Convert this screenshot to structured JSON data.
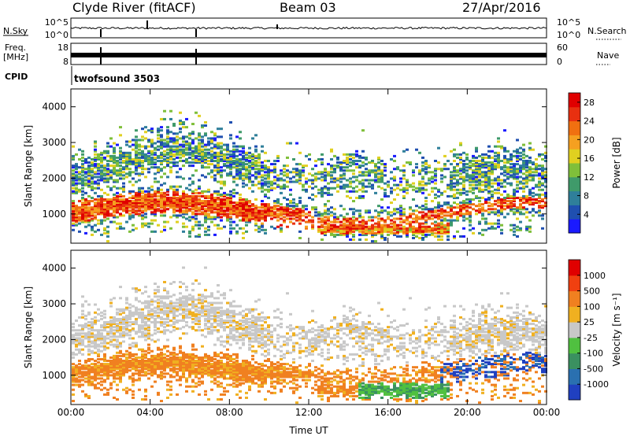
{
  "header": {
    "station": "Clyde River (fitACF)",
    "beam": "Beam 03",
    "date": "27/Apr/2016"
  },
  "strips": {
    "nsky_label": "N.Sky",
    "nsky_ticks": [
      "10^5",
      "10^0"
    ],
    "nsearch_label": "N.Search",
    "freq_label_1": "Freq.",
    "freq_label_2": "[MHz]",
    "freq_ticks": [
      "18",
      "8"
    ],
    "nave_ticks": [
      "60",
      "0"
    ],
    "nave_label": "Nave",
    "cpid_label": "CPID",
    "cpid_text": "twofsound 3503"
  },
  "chart_data": [
    {
      "type": "heatmap",
      "ylabel": "Slant Range [km]",
      "xlabel": "Time UT",
      "x_ticks": [
        "00:00",
        "04:00",
        "08:00",
        "12:00",
        "16:00",
        "20:00",
        "00:00"
      ],
      "y_ticks": [
        "1000",
        "2000",
        "3000",
        "4000"
      ],
      "ylim": [
        180,
        4500
      ],
      "colorbar": {
        "label": "Power [dB]",
        "ticks": [
          "4",
          "8",
          "12",
          "16",
          "20",
          "24",
          "28"
        ],
        "range": [
          0,
          30
        ],
        "colors": [
          "#1a1aff",
          "#1f4fb0",
          "#2f7f9a",
          "#3f9a6a",
          "#7fbf3a",
          "#e0d020",
          "#f5a020",
          "#f07010",
          "#e83010",
          "#e00000"
        ]
      }
    },
    {
      "type": "heatmap",
      "ylabel": "Slant Range [km]",
      "xlabel": "Time UT",
      "x_ticks": [
        "00:00",
        "04:00",
        "08:00",
        "12:00",
        "16:00",
        "20:00",
        "00:00"
      ],
      "y_ticks": [
        "1000",
        "2000",
        "3000",
        "4000"
      ],
      "ylim": [
        180,
        4500
      ],
      "colorbar": {
        "label": "Velocity [m s⁻¹]",
        "ticks": [
          "1000",
          "500",
          "100",
          "25",
          "-25",
          "-100",
          "-500",
          "-1000"
        ],
        "colors": [
          "#2040c0",
          "#2a70b0",
          "#3a9060",
          "#50c040",
          "#c8c8c8",
          "#f0b020",
          "#f08020",
          "#f04010",
          "#e00000"
        ]
      }
    }
  ]
}
